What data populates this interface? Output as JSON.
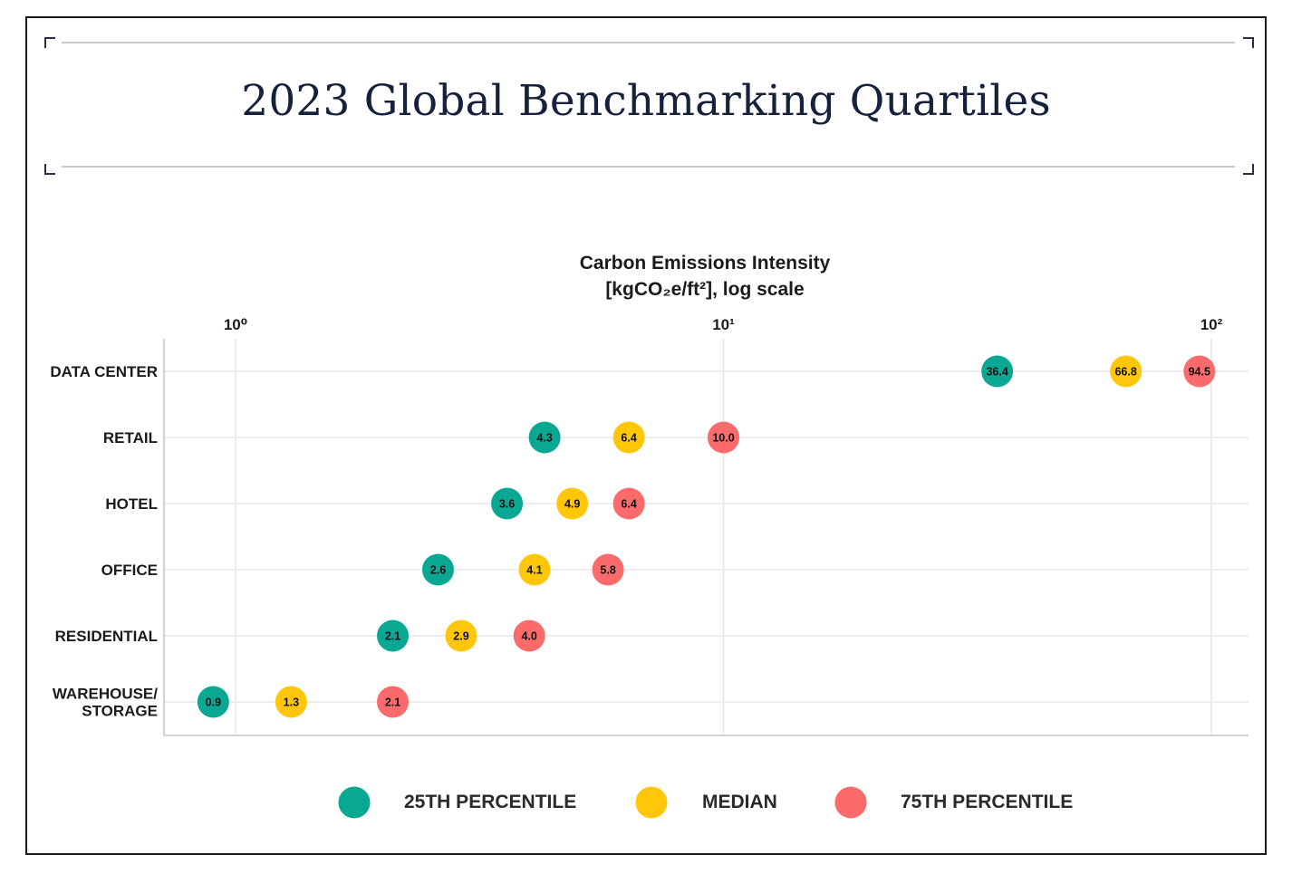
{
  "title": "2023 Global Benchmarking Quartiles",
  "chart_data": {
    "type": "scatter",
    "axis_title": [
      "Carbon Emissions Intensity",
      "[kgCO₂e/ft²], log scale"
    ],
    "x_scale": "log",
    "xlim": [
      0.85,
      110
    ],
    "x_ticks": [
      {
        "value": 1,
        "label": "10⁰"
      },
      {
        "value": 10,
        "label": "10¹"
      },
      {
        "value": 100,
        "label": "10²"
      }
    ],
    "categories": [
      "DATA CENTER",
      "RETAIL",
      "HOTEL",
      "OFFICE",
      "RESIDENTIAL",
      "WAREHOUSE/\nSTORAGE"
    ],
    "series": [
      {
        "name": "25TH PERCENTILE",
        "color": "#0aa892",
        "values": [
          36.4,
          4.3,
          3.6,
          2.6,
          2.1,
          0.9
        ]
      },
      {
        "name": "MEDIAN",
        "color": "#ffc60a",
        "values": [
          66.8,
          6.4,
          4.9,
          4.1,
          2.9,
          1.3
        ]
      },
      {
        "name": "75TH PERCENTILE",
        "color": "#fb6b6b",
        "values": [
          94.5,
          10.0,
          6.4,
          5.8,
          4.0,
          2.1
        ]
      }
    ],
    "grid": true,
    "legend_position": "bottom"
  }
}
